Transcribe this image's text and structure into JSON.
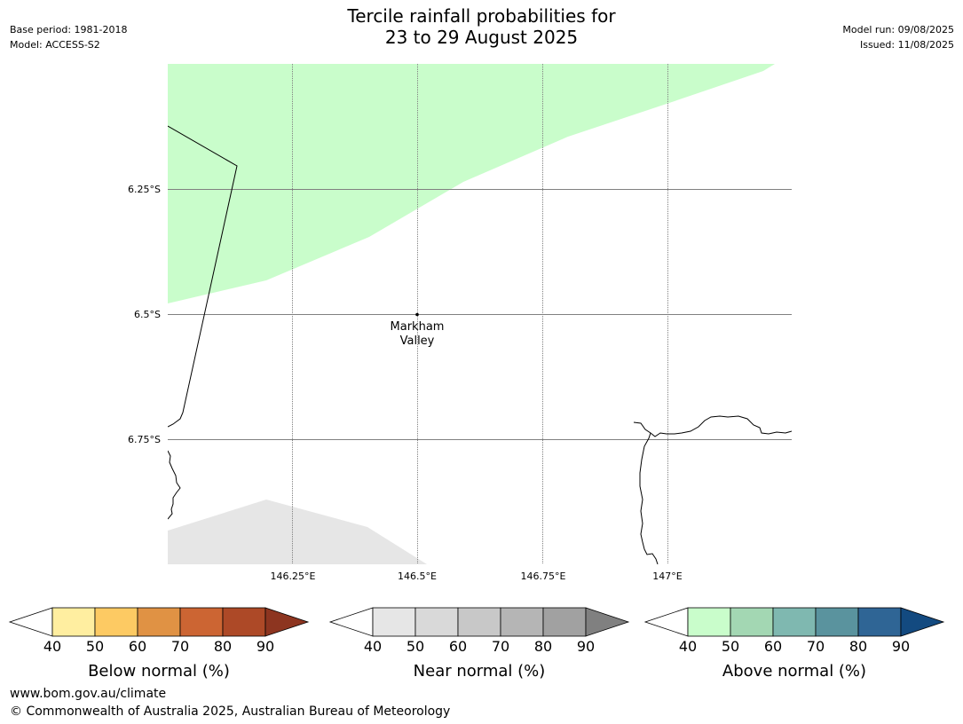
{
  "header": {
    "title_line1": "Tercile rainfall probabilities for",
    "title_line2": "23 to 29 August 2025",
    "base_period": "Base period: 1981-2018",
    "model": "Model: ACCESS-S2",
    "model_run": "Model run: 09/08/2025",
    "issued": "Issued: 11/08/2025"
  },
  "map": {
    "lat_labels": [
      "6.25°S",
      "6.5°S",
      "6.75°S"
    ],
    "lon_labels": [
      "146.25°E",
      "146.5°E",
      "146.75°E",
      "147°E"
    ],
    "place": {
      "line1": "Markham",
      "line2": "Valley"
    },
    "colors": {
      "above_light": "#c9fdcb",
      "near_light": "#e6e6e6",
      "coast": "#000000",
      "grid": "#808080"
    }
  },
  "colorbars": [
    {
      "id": "below",
      "title": "Below normal (%)",
      "ticks": [
        "40",
        "50",
        "60",
        "70",
        "80",
        "90"
      ],
      "colors": [
        "#ffeea0",
        "#fdca63",
        "#e09244",
        "#cc6533",
        "#ad4927",
        "#8d3520"
      ]
    },
    {
      "id": "near",
      "title": "Near normal (%)",
      "ticks": [
        "40",
        "50",
        "60",
        "70",
        "80",
        "90"
      ],
      "colors": [
        "#e6e6e6",
        "#d9d9d9",
        "#c8c8c8",
        "#b5b5b5",
        "#a1a1a1",
        "#808080"
      ]
    },
    {
      "id": "above",
      "title": "Above normal (%)",
      "ticks": [
        "40",
        "50",
        "60",
        "70",
        "80",
        "90"
      ],
      "colors": [
        "#c9fdcb",
        "#a3d7b3",
        "#7fb8b0",
        "#5a939e",
        "#2f6595",
        "#134a80"
      ]
    }
  ],
  "footer": {
    "url": "www.bom.gov.au/climate",
    "copyright": "© Commonwealth of Australia 2025, Australian Bureau of Meteorology"
  }
}
